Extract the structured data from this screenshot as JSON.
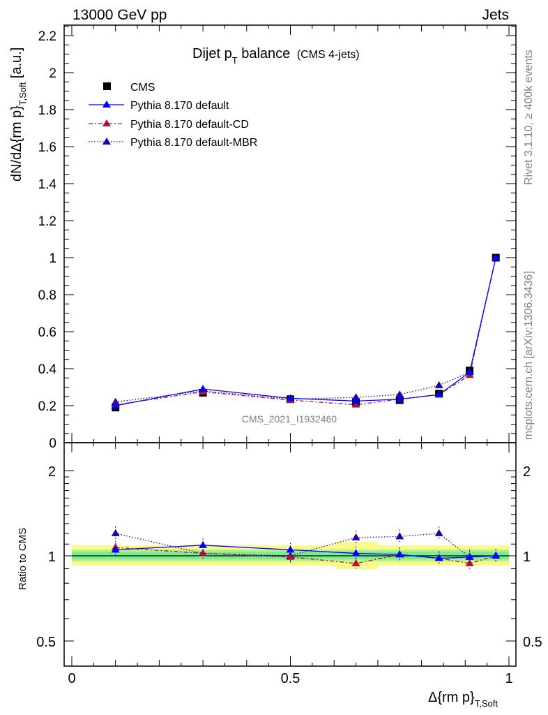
{
  "header": {
    "left": "13000 GeV pp",
    "right": "Jets"
  },
  "side": {
    "top": "Rivet 3.1.10, ≥ 400k events",
    "bottom": "mcplots.cern.ch [arXiv:1306.3436]"
  },
  "watermark": "CMS_2021_I1932460",
  "colors": {
    "cms": "#000000",
    "default": "#0000ff",
    "cd": "#b0103a",
    "mbr": "#2200aa",
    "band_inner": "#7dec8f",
    "band_outer": "#fafa8a"
  },
  "chart_data": [
    {
      "type": "line",
      "title_main": "Dijet p",
      "title_sub": "T",
      "title_rest": " balance",
      "title_small": "(CMS 4-jets)",
      "ylabel": "dN/dΔ{rm p}",
      "ylabel_sub": "T,Soft",
      "ylabel_unit": " [a.u.]",
      "xlim": [
        0,
        1
      ],
      "ylim": [
        0,
        2.25
      ],
      "yticks": [
        "0",
        "0.2",
        "0.4",
        "0.6",
        "0.8",
        "1",
        "1.2",
        "1.4",
        "1.6",
        "1.8",
        "2",
        "2.2"
      ],
      "x": [
        0.1,
        0.3,
        0.5,
        0.65,
        0.75,
        0.84,
        0.91,
        0.97
      ],
      "series": [
        {
          "name": "CMS",
          "values": [
            0.19,
            0.27,
            0.235,
            0.22,
            0.23,
            0.265,
            0.39,
            1.0
          ]
        },
        {
          "name": "Pythia 8.170 default",
          "values": [
            0.2,
            0.29,
            0.24,
            0.225,
            0.235,
            0.26,
            0.38,
            1.0
          ]
        },
        {
          "name": "Pythia 8.170 default-CD",
          "values": [
            0.205,
            0.275,
            0.23,
            0.205,
            0.235,
            0.26,
            0.365,
            1.0
          ]
        },
        {
          "name": "Pythia 8.170 default-MBR",
          "values": [
            0.22,
            0.28,
            0.235,
            0.245,
            0.26,
            0.31,
            0.38,
            1.0
          ]
        }
      ]
    },
    {
      "type": "line",
      "ylabel": "Ratio to CMS",
      "xlabel": "Δ{rm p}",
      "xlabel_sub": "T,Soft",
      "xlim": [
        0,
        1
      ],
      "ylim": [
        0.4,
        2.3
      ],
      "xticks": [
        "0",
        "0.5",
        "1"
      ],
      "yticks": [
        "0.5",
        "1",
        "2"
      ],
      "x": [
        0.1,
        0.3,
        0.5,
        0.65,
        0.75,
        0.84,
        0.91,
        0.97
      ],
      "series": [
        {
          "name": "Pythia 8.170 default",
          "values": [
            1.05,
            1.09,
            1.05,
            1.02,
            1.01,
            0.98,
            0.99,
            1.0
          ]
        },
        {
          "name": "Pythia 8.170 default-CD",
          "values": [
            1.07,
            1.02,
            0.99,
            0.94,
            1.01,
            0.98,
            0.94,
            1.0
          ]
        },
        {
          "name": "Pythia 8.170 default-MBR",
          "values": [
            1.2,
            1.02,
            1.0,
            1.16,
            1.17,
            1.2,
            0.99,
            1.0
          ]
        }
      ]
    }
  ]
}
